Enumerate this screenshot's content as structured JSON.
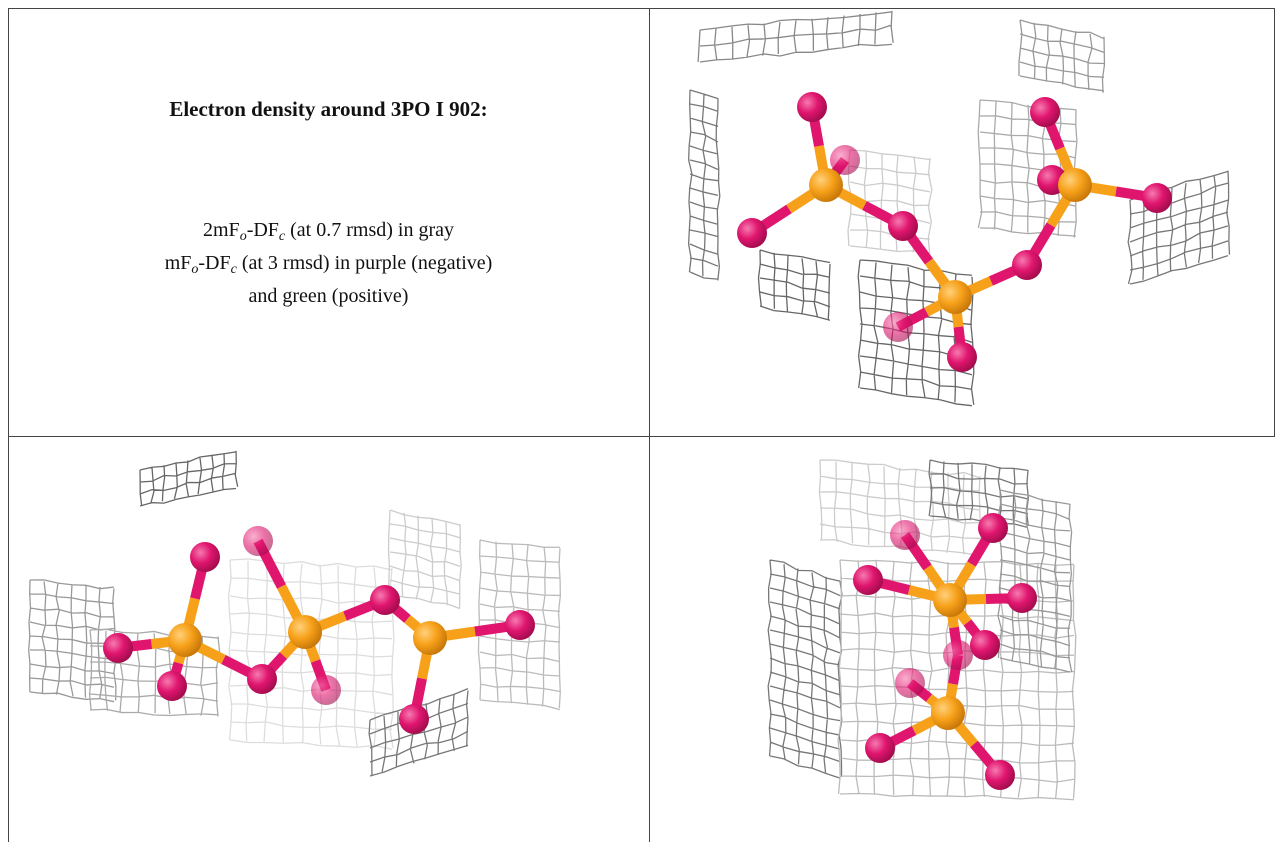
{
  "header": {
    "title": "Electron density around 3PO I 902:"
  },
  "legend": {
    "lines": [
      {
        "parts": [
          "2mF",
          "o",
          "-DF",
          "c",
          " (at 0.7 rmsd) in gray"
        ]
      },
      {
        "parts": [
          "mF",
          "o",
          "-DF",
          "c",
          " (at 3 rmsd) in purple (negative)"
        ]
      },
      {
        "parts": [
          "and green (positive)"
        ]
      }
    ]
  }
}
